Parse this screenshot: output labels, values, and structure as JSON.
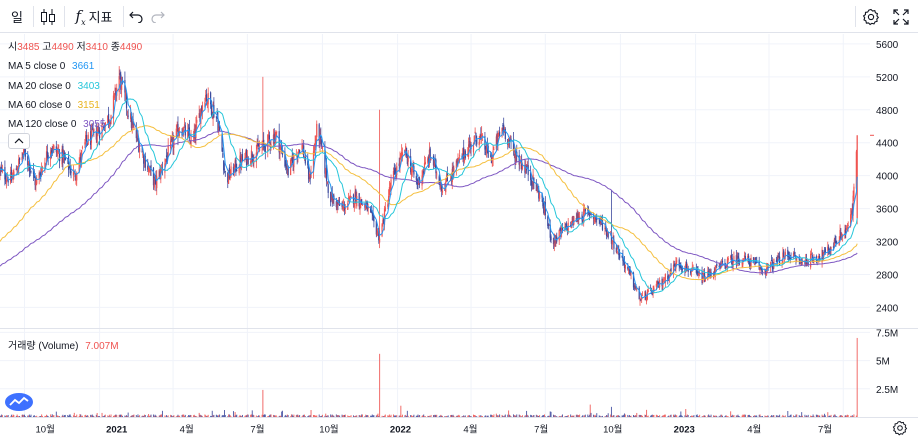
{
  "toolbar": {
    "interval_label": "일",
    "indicators_label": "지표"
  },
  "legend": {
    "ohlc": [
      {
        "label": "시",
        "value": "3485"
      },
      {
        "label": "고",
        "value": "4490"
      },
      {
        "label": "저",
        "value": "3410"
      },
      {
        "label": "종",
        "value": "4490"
      }
    ],
    "ma": [
      {
        "label": "MA 5 close 0",
        "value": "3661",
        "color": "#2196f3"
      },
      {
        "label": "MA 20 close 0",
        "value": "3403",
        "color": "#26c6da"
      },
      {
        "label": "MA 60 close 0",
        "value": "3151",
        "color": "#f5c040"
      },
      {
        "label": "MA 120 close 0",
        "value": "3055",
        "color": "#7e57c2"
      }
    ],
    "volume_label": "거래량 (Volume)",
    "volume_value": "7.007M"
  },
  "colors": {
    "up": "#ef5350",
    "down": "#3d4a9e",
    "ma5": "#2196f3",
    "ma20": "#26c6da",
    "ma60": "#f5c040",
    "ma120": "#7e57c2",
    "grid": "#f0f3fa",
    "axis_text": "#131722"
  },
  "chart_data": [
    {
      "type": "candlestick",
      "title": "",
      "price_axis_ticks": [
        "5600",
        "5200",
        "4800",
        "4400",
        "4000",
        "3600",
        "3200",
        "2800",
        "2400"
      ],
      "ylim": [
        2150,
        5720
      ],
      "time_axis_ticks": [
        "10월",
        "2021",
        "4월",
        "7월",
        "10월",
        "2022",
        "4월",
        "7월",
        "10월",
        "2023",
        "4월",
        "7월"
      ],
      "grid": true,
      "last_bar": {
        "open": 3485,
        "high": 4490,
        "low": 3410,
        "close": 4490
      },
      "close_path": [
        [
          "2020-09-01",
          4050
        ],
        [
          "2020-09-15",
          3950
        ],
        [
          "2020-10-01",
          4300
        ],
        [
          "2020-10-15",
          3900
        ],
        [
          "2020-11-01",
          4350
        ],
        [
          "2020-11-15",
          4250
        ],
        [
          "2020-12-01",
          4000
        ],
        [
          "2020-12-15",
          4400
        ],
        [
          "2021-01-01",
          4550
        ],
        [
          "2021-01-15",
          4750
        ],
        [
          "2021-01-25",
          5200
        ],
        [
          "2021-02-10",
          4600
        ],
        [
          "2021-02-25",
          4200
        ],
        [
          "2021-03-10",
          3900
        ],
        [
          "2021-03-25",
          4250
        ],
        [
          "2021-04-10",
          4600
        ],
        [
          "2021-04-25",
          4400
        ],
        [
          "2021-05-10",
          5000
        ],
        [
          "2021-05-25",
          4700
        ],
        [
          "2021-06-05",
          3950
        ],
        [
          "2021-06-20",
          4150
        ],
        [
          "2021-07-05",
          4250
        ],
        [
          "2021-07-20",
          4350
        ],
        [
          "2021-08-05",
          4500
        ],
        [
          "2021-08-20",
          4050
        ],
        [
          "2021-09-05",
          4400
        ],
        [
          "2021-09-15",
          3950
        ],
        [
          "2021-09-25",
          4600
        ],
        [
          "2021-10-10",
          3750
        ],
        [
          "2021-10-25",
          3600
        ],
        [
          "2021-11-10",
          3750
        ],
        [
          "2021-11-25",
          3600
        ],
        [
          "2021-12-10",
          3250
        ],
        [
          "2021-12-25",
          3950
        ],
        [
          "2022-01-10",
          4300
        ],
        [
          "2022-01-25",
          3900
        ],
        [
          "2022-02-10",
          4250
        ],
        [
          "2022-02-25",
          3850
        ],
        [
          "2022-03-10",
          4050
        ],
        [
          "2022-03-25",
          4300
        ],
        [
          "2022-04-10",
          4500
        ],
        [
          "2022-04-25",
          4200
        ],
        [
          "2022-05-10",
          4600
        ],
        [
          "2022-05-25",
          4250
        ],
        [
          "2022-06-10",
          4050
        ],
        [
          "2022-06-25",
          3750
        ],
        [
          "2022-07-10",
          3200
        ],
        [
          "2022-07-25",
          3350
        ],
        [
          "2022-08-10",
          3500
        ],
        [
          "2022-08-25",
          3550
        ],
        [
          "2022-09-10",
          3400
        ],
        [
          "2022-09-25",
          3150
        ],
        [
          "2022-10-10",
          2850
        ],
        [
          "2022-10-25",
          2500
        ],
        [
          "2022-11-10",
          2600
        ],
        [
          "2022-11-25",
          2750
        ],
        [
          "2022-12-10",
          2950
        ],
        [
          "2022-12-25",
          2850
        ],
        [
          "2023-01-10",
          2750
        ],
        [
          "2023-01-25",
          2850
        ],
        [
          "2023-02-10",
          2950
        ],
        [
          "2023-02-25",
          3000
        ],
        [
          "2023-03-10",
          2950
        ],
        [
          "2023-03-25",
          2850
        ],
        [
          "2023-04-10",
          2950
        ],
        [
          "2023-04-25",
          3050
        ],
        [
          "2023-05-10",
          2950
        ],
        [
          "2023-05-25",
          3000
        ],
        [
          "2023-06-10",
          3050
        ],
        [
          "2023-06-25",
          3250
        ],
        [
          "2023-07-05",
          3350
        ],
        [
          "2023-07-12",
          3550
        ],
        [
          "2023-07-18",
          4490
        ]
      ]
    },
    {
      "type": "bar",
      "title": "거래량 (Volume)",
      "axis_ticks": [
        "7.5M",
        "5M",
        "2.5M"
      ],
      "ylim": [
        0,
        7.8
      ],
      "spikes_millions": [
        [
          "2021-07-20",
          2.4
        ],
        [
          "2021-12-10",
          5.6
        ],
        [
          "2022-01-05",
          1.0
        ],
        [
          "2022-08-25",
          1.1
        ],
        [
          "2022-09-20",
          0.9
        ],
        [
          "2023-07-18",
          7.007
        ]
      ]
    }
  ]
}
